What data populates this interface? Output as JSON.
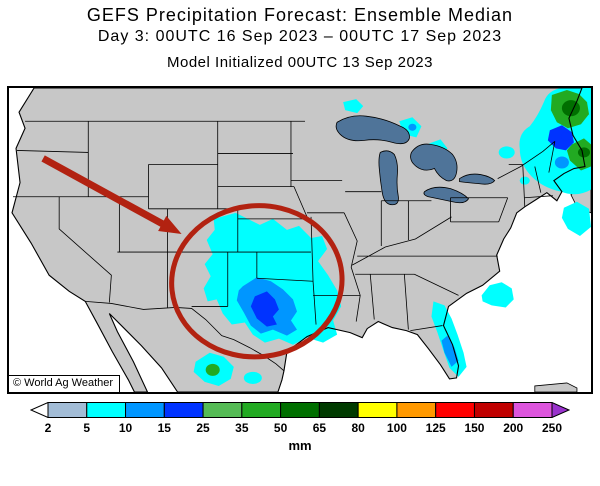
{
  "header": {
    "title": "GEFS Precipitation Forecast: Ensemble Median",
    "subtitle": "Day 3: 00UTC 16 Sep 2023 – 00UTC 17 Sep 2023",
    "init_line": "Model Initialized 00UTC 13 Sep 2023"
  },
  "map": {
    "copyright": "© World Ag Weather",
    "land_color": "#c7c7c7",
    "water_color": "#ffffff",
    "lake_color": "#4f7499",
    "annotation_color": "#b22211"
  },
  "palette": {
    "rain_2_5": "#a2bcd6",
    "rain_5_10": "#00ffff",
    "rain_10_15": "#0096ff",
    "rain_15_25": "#0033ff",
    "rain_25_35": "#55bb55",
    "rain_35_50": "#22aa22",
    "rain_50_65": "#006f00",
    "rain_65_80": "#003b00",
    "rain_80_100": "#ffff00",
    "rain_100_125": "#ff9900",
    "rain_125_150": "#ff0000",
    "rain_150_200": "#c00000",
    "rain_200_250": "#dd55dd"
  },
  "colorbar": {
    "unit": "mm",
    "ticks": [
      "2",
      "5",
      "10",
      "15",
      "25",
      "35",
      "50",
      "65",
      "80",
      "100",
      "125",
      "150",
      "200",
      "250"
    ],
    "left_cap_color": "#ffffff",
    "right_cap_color": "#9932cc",
    "segments": [
      {
        "range": "2-5",
        "color": "#a2bcd6"
      },
      {
        "range": "5-10",
        "color": "#00ffff"
      },
      {
        "range": "10-15",
        "color": "#0096ff"
      },
      {
        "range": "15-25",
        "color": "#0033ff"
      },
      {
        "range": "25-35",
        "color": "#55bb55"
      },
      {
        "range": "35-50",
        "color": "#22aa22"
      },
      {
        "range": "50-65",
        "color": "#006f00"
      },
      {
        "range": "65-80",
        "color": "#003b00"
      },
      {
        "range": "80-100",
        "color": "#ffff00"
      },
      {
        "range": "100-125",
        "color": "#ff9900"
      },
      {
        "range": "125-150",
        "color": "#ff0000"
      },
      {
        "range": "150-200",
        "color": "#c00000"
      },
      {
        "range": "200-250",
        "color": "#dd55dd"
      }
    ]
  }
}
